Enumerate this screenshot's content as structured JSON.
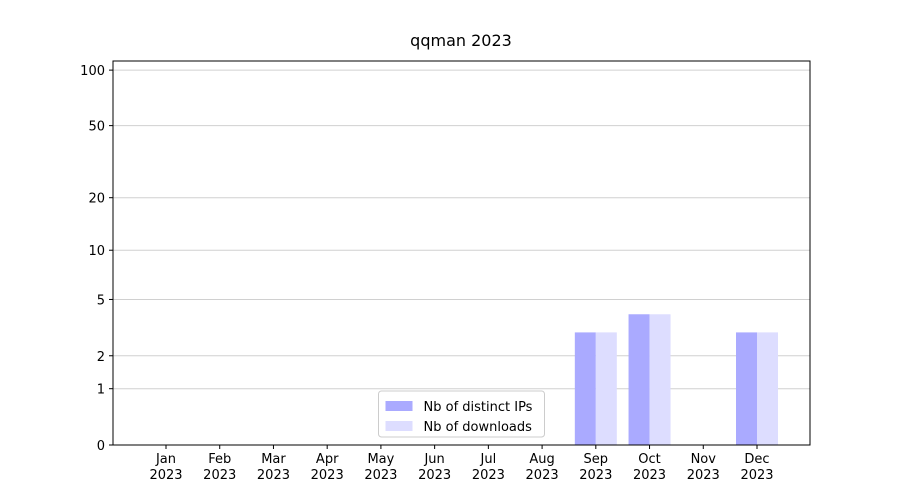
{
  "chart_data": {
    "type": "bar",
    "title": "qqman 2023",
    "categories": [
      "Jan 2023",
      "Feb 2023",
      "Mar 2023",
      "Apr 2023",
      "May 2023",
      "Jun 2023",
      "Jul 2023",
      "Aug 2023",
      "Sep 2023",
      "Oct 2023",
      "Nov 2023",
      "Dec 2023"
    ],
    "series": [
      {
        "name": "Nb of distinct IPs",
        "color": "#aaaaff",
        "values": [
          0,
          0,
          0,
          0,
          0,
          0,
          0,
          0,
          3,
          4,
          0,
          3
        ]
      },
      {
        "name": "Nb of downloads",
        "color": "#ddddff",
        "values": [
          0,
          0,
          0,
          0,
          0,
          0,
          0,
          0,
          3,
          4,
          0,
          3
        ]
      }
    ],
    "yscale": "log1p",
    "ylim": [
      0,
      112
    ],
    "yticks": [
      0,
      1,
      2,
      5,
      10,
      20,
      50,
      100
    ],
    "grid": true,
    "legend": "lower center"
  }
}
